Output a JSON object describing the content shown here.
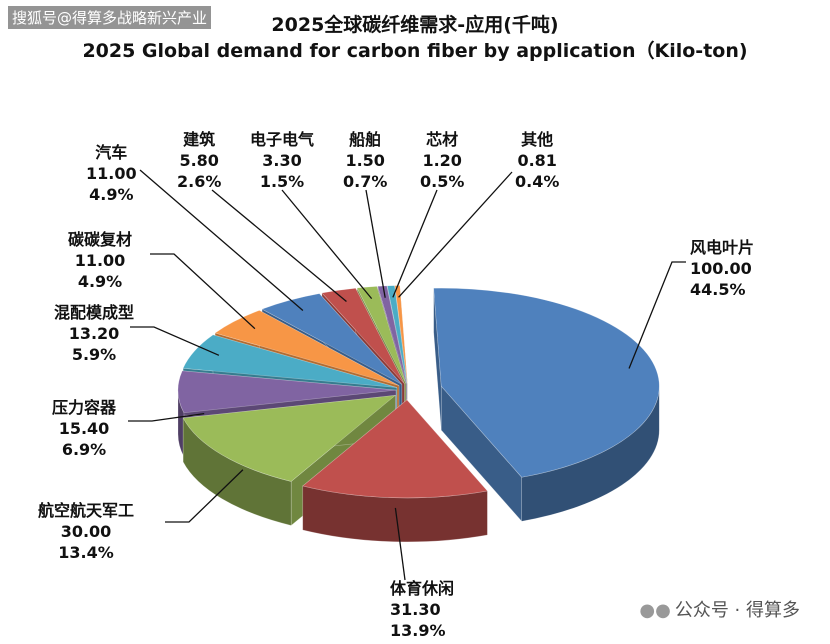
{
  "watermark_top": "搜狐号@得算多战略新兴产业",
  "watermark_bottom": "公众号 · 得算多",
  "chart_data": {
    "type": "pie",
    "title": "2025全球碳纤维需求-应用(千吨)",
    "subtitle": "2025 Global demand for carbon fiber by application（Kilo-ton)",
    "slices": [
      {
        "name": "风电叶片",
        "value": 100.0,
        "value_label": "100.00",
        "percent": "44.5%",
        "color": "#4F81BD"
      },
      {
        "name": "体育休闲",
        "value": 31.3,
        "value_label": "31.30",
        "percent": "13.9%",
        "color": "#C0504D"
      },
      {
        "name": "航空航天军工",
        "value": 30.0,
        "value_label": "30.00",
        "percent": "13.4%",
        "color": "#9BBB59"
      },
      {
        "name": "压力容器",
        "value": 15.4,
        "value_label": "15.40",
        "percent": "6.9%",
        "color": "#8064A2"
      },
      {
        "name": "混配模成型",
        "value": 13.2,
        "value_label": "13.20",
        "percent": "5.9%",
        "color": "#4BACC6"
      },
      {
        "name": "碳碳复材",
        "value": 11.0,
        "value_label": "11.00",
        "percent": "4.9%",
        "color": "#F79646"
      },
      {
        "name": "汽车",
        "value": 11.0,
        "value_label": "11.00",
        "percent": "4.9%",
        "color": "#4F81BD"
      },
      {
        "name": "建筑",
        "value": 5.8,
        "value_label": "5.80",
        "percent": "2.6%",
        "color": "#C0504D"
      },
      {
        "name": "电子电气",
        "value": 3.3,
        "value_label": "3.30",
        "percent": "1.5%",
        "color": "#9BBB59"
      },
      {
        "name": "船舶",
        "value": 1.5,
        "value_label": "1.50",
        "percent": "0.7%",
        "color": "#8064A2"
      },
      {
        "name": "芯材",
        "value": 1.2,
        "value_label": "1.20",
        "percent": "0.5%",
        "color": "#4BACC6"
      },
      {
        "name": "其他",
        "value": 0.81,
        "value_label": "0.81",
        "percent": "0.4%",
        "color": "#F79646"
      }
    ]
  }
}
